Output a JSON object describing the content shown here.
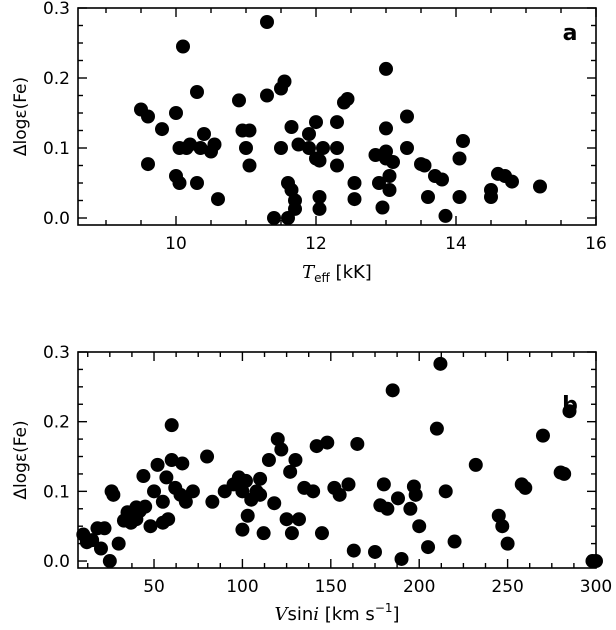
{
  "chart_data": [
    {
      "type": "scatter",
      "panel_label": "a",
      "xlabel_main": "T",
      "xlabel_sub": "eff",
      "xlabel_unit": "[kK]",
      "ylabel": "Δlogε(Fe)",
      "xlim": [
        8.6,
        16
      ],
      "ylim": [
        -0.01,
        0.3
      ],
      "xticks": [
        10,
        12,
        14,
        16
      ],
      "yticks": [
        0.0,
        0.1,
        0.2,
        0.3
      ],
      "x": [
        9.5,
        9.6,
        9.6,
        9.8,
        10.0,
        10.0,
        10.05,
        10.05,
        10.1,
        10.15,
        10.2,
        10.3,
        10.3,
        10.35,
        10.4,
        10.5,
        10.55,
        10.6,
        10.9,
        10.95,
        11.0,
        11.05,
        11.05,
        11.3,
        11.3,
        11.4,
        11.5,
        11.5,
        11.55,
        11.6,
        11.6,
        11.65,
        11.65,
        11.7,
        11.7,
        11.75,
        11.9,
        11.9,
        12.0,
        12.0,
        12.05,
        12.05,
        12.05,
        12.1,
        12.3,
        12.3,
        12.3,
        12.4,
        12.45,
        12.55,
        12.55,
        12.85,
        12.9,
        12.95,
        13.0,
        13.0,
        13.0,
        13.0,
        13.05,
        13.05,
        13.1,
        13.3,
        13.3,
        13.5,
        13.55,
        13.6,
        13.7,
        13.8,
        13.85,
        14.05,
        14.05,
        14.1,
        14.5,
        14.5,
        14.6,
        14.7,
        14.8,
        15.2
      ],
      "y": [
        0.155,
        0.145,
        0.077,
        0.127,
        0.06,
        0.15,
        0.1,
        0.05,
        0.245,
        0.1,
        0.105,
        0.18,
        0.05,
        0.1,
        0.12,
        0.095,
        0.105,
        0.027,
        0.168,
        0.125,
        0.1,
        0.125,
        0.075,
        0.175,
        0.28,
        0.0,
        0.1,
        0.185,
        0.195,
        0.05,
        0.0,
        0.04,
        0.13,
        0.025,
        0.013,
        0.105,
        0.1,
        0.12,
        0.085,
        0.137,
        0.082,
        0.03,
        0.013,
        0.1,
        0.137,
        0.1,
        0.075,
        0.165,
        0.17,
        0.05,
        0.027,
        0.09,
        0.05,
        0.015,
        0.085,
        0.095,
        0.213,
        0.128,
        0.06,
        0.04,
        0.08,
        0.145,
        0.1,
        0.077,
        0.075,
        0.03,
        0.06,
        0.055,
        0.003,
        0.085,
        0.03,
        0.11,
        0.04,
        0.03,
        0.063,
        0.06,
        0.052,
        0.045
      ]
    },
    {
      "type": "scatter",
      "panel_label": "b",
      "xlabel_main": "V",
      "xlabel_mid": "sin",
      "xlabel_italic": "i",
      "xlabel_unit": "[km s",
      "xlabel_sup": "−1",
      "xlabel_close": "]",
      "ylabel": "Δlogε(Fe)",
      "xlim": [
        7,
        300
      ],
      "ylim": [
        -0.01,
        0.3
      ],
      "xticks": [
        50,
        100,
        150,
        200,
        250,
        300
      ],
      "yticks": [
        0.0,
        0.1,
        0.2,
        0.3
      ],
      "x": [
        10,
        12,
        15,
        18,
        20,
        22,
        25,
        26,
        27,
        30,
        33,
        35,
        37,
        40,
        40,
        42,
        44,
        45,
        48,
        50,
        52,
        55,
        55,
        57,
        58,
        60,
        60,
        62,
        65,
        66,
        68,
        72,
        80,
        83,
        90,
        95,
        98,
        100,
        100,
        102,
        103,
        105,
        108,
        110,
        110,
        112,
        115,
        118,
        120,
        122,
        125,
        127,
        128,
        130,
        132,
        135,
        140,
        142,
        145,
        148,
        152,
        155,
        160,
        163,
        165,
        175,
        178,
        180,
        182,
        185,
        188,
        190,
        195,
        197,
        198,
        200,
        205,
        210,
        212,
        215,
        220,
        232,
        245,
        247,
        250,
        258,
        260,
        270,
        280,
        282,
        285,
        298,
        300
      ],
      "y": [
        0.038,
        0.027,
        0.03,
        0.047,
        0.018,
        0.047,
        0.0,
        0.1,
        0.095,
        0.025,
        0.058,
        0.07,
        0.055,
        0.06,
        0.077,
        0.072,
        0.122,
        0.078,
        0.05,
        0.1,
        0.138,
        0.055,
        0.085,
        0.12,
        0.06,
        0.145,
        0.195,
        0.105,
        0.095,
        0.14,
        0.085,
        0.1,
        0.15,
        0.085,
        0.1,
        0.11,
        0.12,
        0.1,
        0.045,
        0.115,
        0.065,
        0.088,
        0.1,
        0.118,
        0.095,
        0.04,
        0.145,
        0.083,
        0.175,
        0.16,
        0.06,
        0.128,
        0.04,
        0.145,
        0.06,
        0.105,
        0.1,
        0.165,
        0.04,
        0.17,
        0.105,
        0.095,
        0.11,
        0.015,
        0.168,
        0.013,
        0.08,
        0.11,
        0.075,
        0.245,
        0.09,
        0.003,
        0.075,
        0.107,
        0.095,
        0.05,
        0.02,
        0.19,
        0.283,
        0.1,
        0.028,
        0.138,
        0.065,
        0.05,
        0.025,
        0.11,
        0.105,
        0.18,
        0.127,
        0.125,
        0.215,
        0.0,
        0.0
      ]
    }
  ]
}
